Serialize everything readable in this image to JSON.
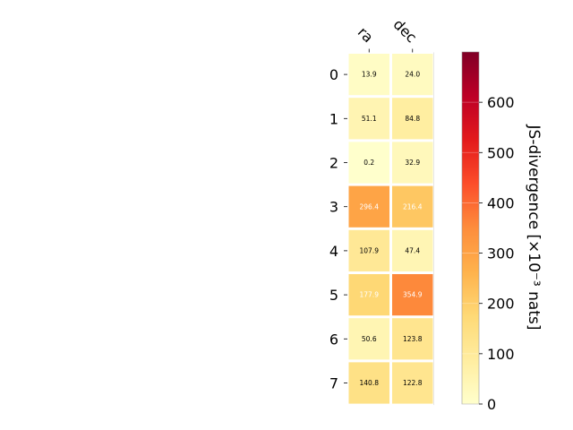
{
  "chart_data": {
    "type": "heatmap",
    "columns": [
      "ra",
      "dec"
    ],
    "rows": [
      "0",
      "1",
      "2",
      "3",
      "4",
      "5",
      "6",
      "7"
    ],
    "values": [
      [
        13.9,
        24.0
      ],
      [
        51.1,
        84.8
      ],
      [
        0.2,
        32.9
      ],
      [
        296.4,
        216.4
      ],
      [
        107.9,
        47.4
      ],
      [
        177.9,
        354.9
      ],
      [
        50.6,
        123.8
      ],
      [
        140.8,
        122.8
      ]
    ],
    "labels": [
      [
        "13.9",
        "24.0"
      ],
      [
        "51.1",
        "84.8"
      ],
      [
        "0.2",
        "32.9"
      ],
      [
        "296.4",
        "216.4"
      ],
      [
        "107.9",
        "47.4"
      ],
      [
        "177.9",
        "354.9"
      ],
      [
        "50.6",
        "123.8"
      ],
      [
        "140.8",
        "122.8"
      ]
    ],
    "colorbar": {
      "label": "JS-divergence [×10⁻³ nats]",
      "vmin": 0,
      "vmax": 700,
      "ticks": [
        "0",
        "100",
        "200",
        "300",
        "400",
        "500",
        "600"
      ],
      "colormap": "YlOrRd"
    },
    "grid": false
  }
}
